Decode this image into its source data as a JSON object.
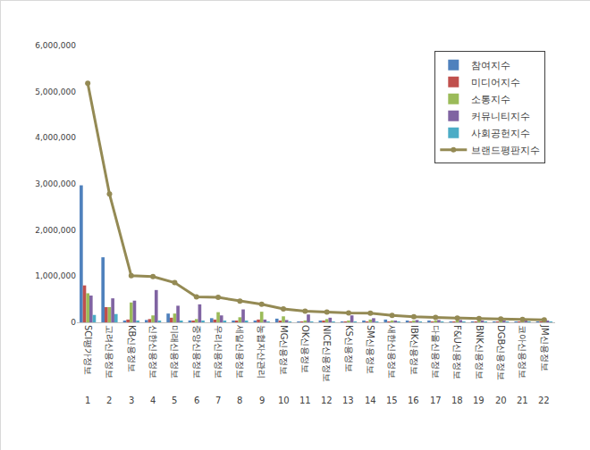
{
  "chart_data": {
    "type": "bar",
    "categories": [
      "SCI평가정보",
      "고려신용정보",
      "KB신용정보",
      "신한신용정보",
      "미래신용정보",
      "중앙신용정보",
      "우리신용정보",
      "세일신용정보",
      "농협자산관리",
      "MG신용정보",
      "OK신용정보",
      "NICE신용정보",
      "KS신용정보",
      "SM신용정보",
      "새한신용정보",
      "IBK신용정보",
      "다올신용정보",
      "F&U신용정보",
      "BNK신용정보",
      "DGB신용정보",
      "코아신용정보",
      "JM신용정보"
    ],
    "ranks": [
      1,
      2,
      3,
      4,
      5,
      6,
      7,
      8,
      9,
      10,
      11,
      12,
      13,
      14,
      15,
      16,
      17,
      18,
      19,
      20,
      21,
      22
    ],
    "series": [
      {
        "name": "참여지수",
        "type": "bar",
        "color": "#4f81bd",
        "values": [
          2970000,
          1410000,
          30000,
          50000,
          190000,
          40000,
          90000,
          30000,
          30000,
          80000,
          10000,
          20000,
          10000,
          30000,
          60000,
          20000,
          20000,
          10000,
          10000,
          10000,
          10000,
          10000
        ]
      },
      {
        "name": "미디어지수",
        "type": "bar",
        "color": "#c0504d",
        "values": [
          800000,
          330000,
          60000,
          70000,
          100000,
          30000,
          60000,
          20000,
          60000,
          20000,
          10000,
          20000,
          10000,
          10000,
          10000,
          10000,
          10000,
          5000,
          5000,
          5000,
          5000,
          5000
        ]
      },
      {
        "name": "소통지수",
        "type": "bar",
        "color": "#9bbb59",
        "values": [
          630000,
          330000,
          430000,
          150000,
          190000,
          70000,
          220000,
          110000,
          230000,
          130000,
          40000,
          70000,
          30000,
          60000,
          40000,
          30000,
          20000,
          20000,
          20000,
          20000,
          15000,
          10000
        ]
      },
      {
        "name": "커뮤니티지수",
        "type": "bar",
        "color": "#8064a2",
        "values": [
          580000,
          520000,
          470000,
          700000,
          360000,
          390000,
          150000,
          280000,
          60000,
          50000,
          170000,
          100000,
          150000,
          90000,
          30000,
          50000,
          50000,
          50000,
          40000,
          35000,
          30000,
          25000
        ]
      },
      {
        "name": "사회공헌지수",
        "type": "bar",
        "color": "#4bacc6",
        "values": [
          160000,
          180000,
          20000,
          20000,
          20000,
          20000,
          20000,
          20000,
          10000,
          10000,
          10000,
          15000,
          5000,
          10000,
          10000,
          10000,
          5000,
          5000,
          5000,
          5000,
          5000,
          5000
        ]
      },
      {
        "name": "브랜드평판지수",
        "type": "line",
        "color": "#948a54",
        "marker": "circle",
        "values": [
          5180000,
          2780000,
          1010000,
          990000,
          860000,
          550000,
          540000,
          460000,
          390000,
          290000,
          240000,
          225000,
          205000,
          200000,
          150000,
          120000,
          105000,
          90000,
          80000,
          75000,
          65000,
          55000
        ]
      }
    ],
    "ylim": [
      0,
      6000000
    ],
    "yticks": [
      0,
      {
        "value": 1000000,
        "label": "1,000,000"
      },
      {
        "value": 2000000,
        "label": "2,000,000"
      },
      {
        "value": 3000000,
        "label": "3,000,000"
      },
      {
        "value": 4000000,
        "label": "4,000,000"
      },
      {
        "value": 5000000,
        "label": "5,000,000"
      },
      {
        "value": 6000000,
        "label": "6,000,000"
      }
    ],
    "grid": false,
    "legend": "top right"
  }
}
